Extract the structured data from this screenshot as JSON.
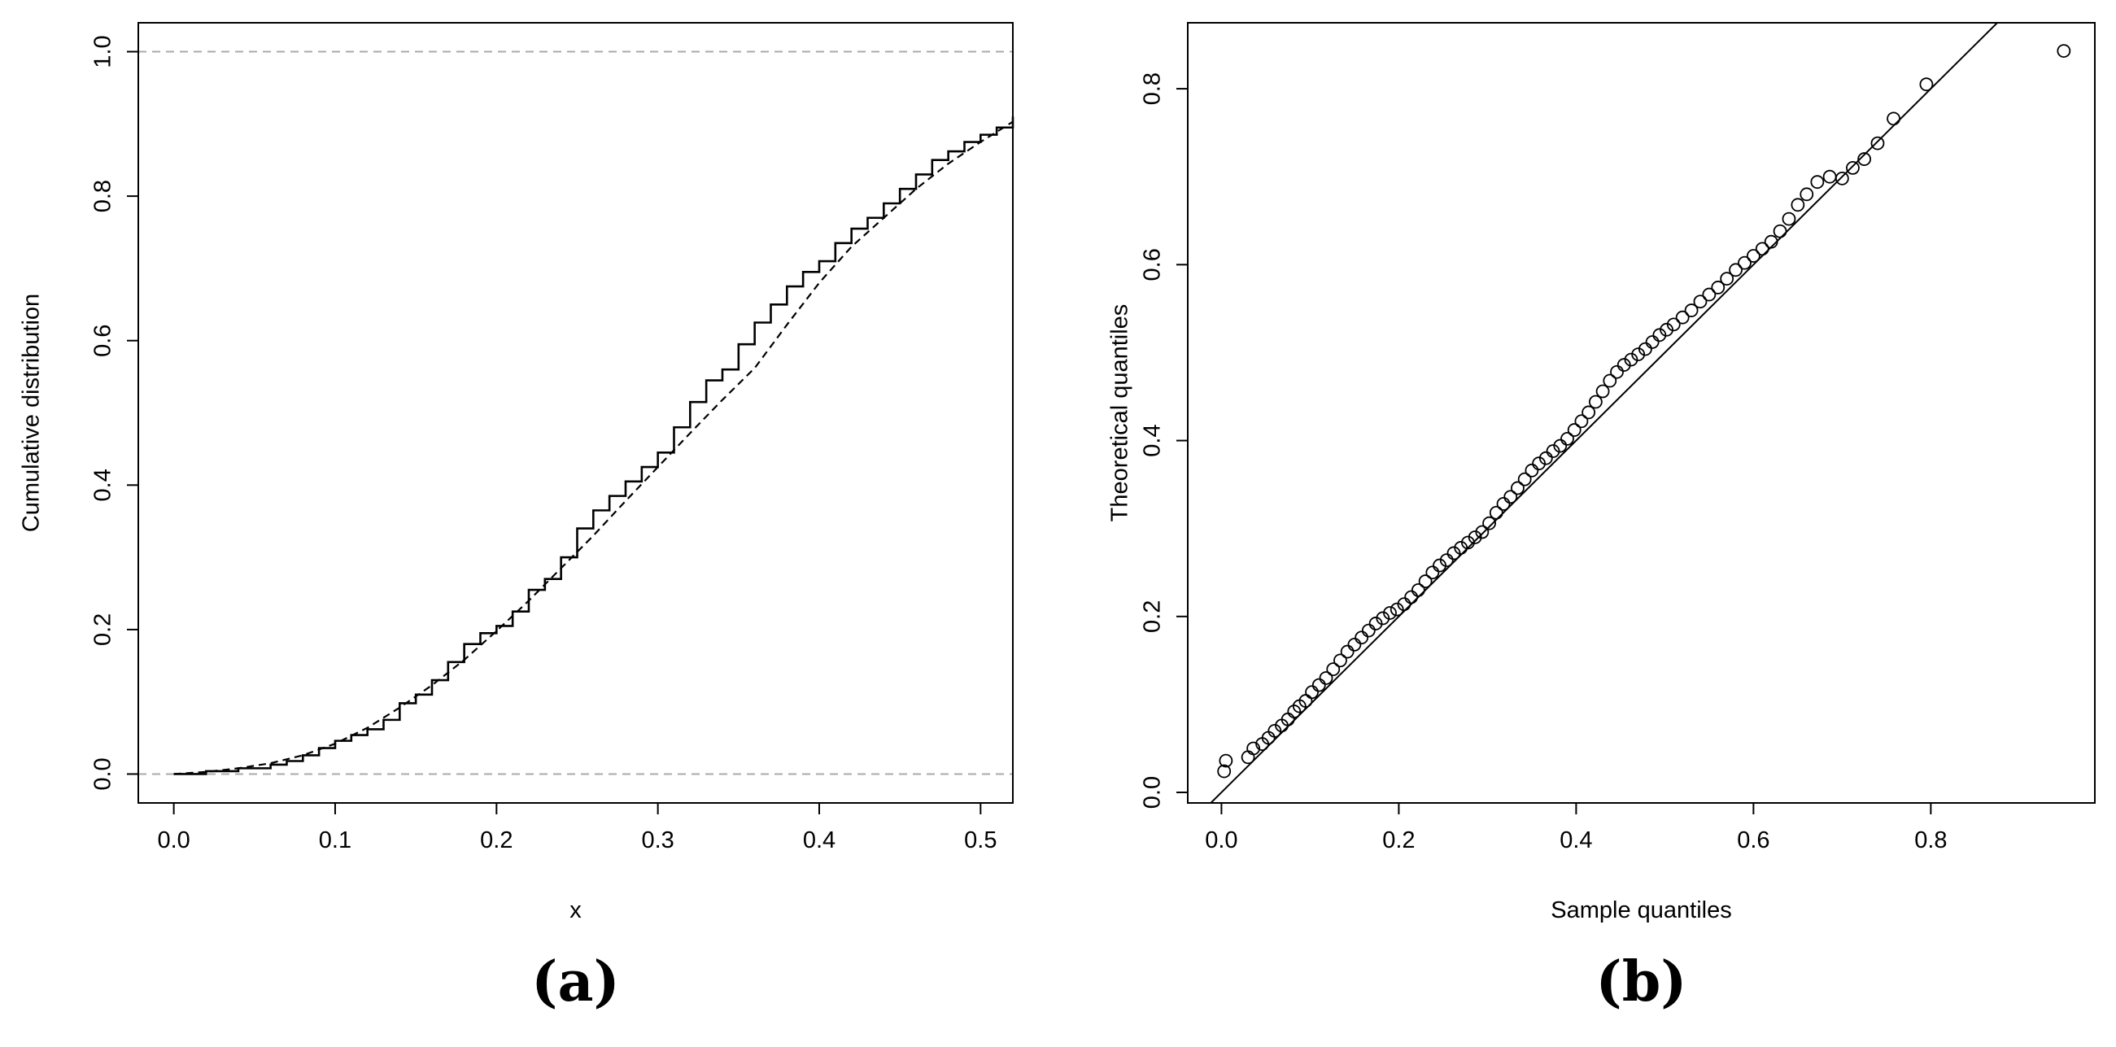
{
  "panels": {
    "a_label": "(a)",
    "b_label": "(b)"
  },
  "chart_data": [
    {
      "id": "a",
      "type": "line",
      "title": "",
      "xlabel": "x",
      "ylabel": "Cumulative distribution",
      "xlim": [
        -0.022,
        0.52
      ],
      "ylim": [
        -0.04,
        1.04
      ],
      "xticks": [
        0.0,
        0.1,
        0.2,
        0.3,
        0.4,
        0.5
      ],
      "xtick_labels": [
        "0.0",
        "0.1",
        "0.2",
        "0.3",
        "0.4",
        "0.5"
      ],
      "yticks": [
        0.0,
        0.2,
        0.4,
        0.6,
        0.8,
        1.0
      ],
      "ytick_labels": [
        "0.0",
        "0.2",
        "0.4",
        "0.6",
        "0.8",
        "1.0"
      ],
      "reference_lines_y": [
        0.0,
        1.0
      ],
      "grid": false,
      "series": [
        {
          "style": "solid-step",
          "x": [
            0.0,
            0.02,
            0.04,
            0.06,
            0.07,
            0.08,
            0.09,
            0.1,
            0.11,
            0.12,
            0.13,
            0.14,
            0.15,
            0.16,
            0.17,
            0.18,
            0.19,
            0.2,
            0.21,
            0.22,
            0.23,
            0.24,
            0.25,
            0.26,
            0.27,
            0.28,
            0.29,
            0.3,
            0.31,
            0.32,
            0.33,
            0.34,
            0.35,
            0.36,
            0.37,
            0.38,
            0.39,
            0.4,
            0.41,
            0.42,
            0.43,
            0.44,
            0.45,
            0.46,
            0.47,
            0.48,
            0.49,
            0.5,
            0.51,
            0.52
          ],
          "y": [
            0.0,
            0.004,
            0.008,
            0.013,
            0.018,
            0.026,
            0.036,
            0.046,
            0.054,
            0.062,
            0.075,
            0.098,
            0.11,
            0.13,
            0.155,
            0.18,
            0.195,
            0.205,
            0.225,
            0.255,
            0.27,
            0.3,
            0.34,
            0.365,
            0.385,
            0.405,
            0.425,
            0.445,
            0.48,
            0.515,
            0.545,
            0.56,
            0.595,
            0.625,
            0.65,
            0.675,
            0.695,
            0.71,
            0.735,
            0.755,
            0.77,
            0.79,
            0.81,
            0.83,
            0.85,
            0.862,
            0.875,
            0.885,
            0.895,
            0.91
          ]
        },
        {
          "style": "dashed-smooth",
          "x": [
            0.0,
            0.02,
            0.04,
            0.06,
            0.08,
            0.1,
            0.12,
            0.14,
            0.16,
            0.18,
            0.2,
            0.22,
            0.24,
            0.26,
            0.28,
            0.3,
            0.32,
            0.34,
            0.36,
            0.38,
            0.4,
            0.42,
            0.44,
            0.46,
            0.48,
            0.5,
            0.52
          ],
          "y": [
            0.0,
            0.003,
            0.008,
            0.015,
            0.026,
            0.042,
            0.064,
            0.092,
            0.123,
            0.158,
            0.198,
            0.24,
            0.285,
            0.33,
            0.378,
            0.425,
            0.472,
            0.518,
            0.562,
            0.622,
            0.68,
            0.73,
            0.77,
            0.81,
            0.845,
            0.875,
            0.903
          ]
        }
      ]
    },
    {
      "id": "b",
      "type": "scatter",
      "title": "",
      "xlabel": "Sample quantiles",
      "ylabel": "Theoretical quantiles",
      "xlim": [
        -0.038,
        0.985
      ],
      "ylim": [
        -0.012,
        0.875
      ],
      "xticks": [
        0.0,
        0.2,
        0.4,
        0.6,
        0.8
      ],
      "xtick_labels": [
        "0.0",
        "0.2",
        "0.4",
        "0.6",
        "0.8"
      ],
      "yticks": [
        0.0,
        0.2,
        0.4,
        0.6,
        0.8
      ],
      "ytick_labels": [
        "0.0",
        "0.2",
        "0.4",
        "0.6",
        "0.8"
      ],
      "grid": false,
      "reference_line": {
        "slope": 1.0,
        "intercept": 0.0
      },
      "points": {
        "x": [
          0.003,
          0.005,
          0.03,
          0.036,
          0.046,
          0.053,
          0.06,
          0.068,
          0.075,
          0.082,
          0.088,
          0.095,
          0.102,
          0.11,
          0.118,
          0.126,
          0.134,
          0.142,
          0.15,
          0.158,
          0.166,
          0.174,
          0.182,
          0.19,
          0.198,
          0.206,
          0.214,
          0.222,
          0.23,
          0.238,
          0.246,
          0.254,
          0.262,
          0.27,
          0.278,
          0.286,
          0.294,
          0.302,
          0.31,
          0.318,
          0.326,
          0.334,
          0.342,
          0.35,
          0.358,
          0.366,
          0.374,
          0.382,
          0.39,
          0.398,
          0.406,
          0.414,
          0.422,
          0.43,
          0.438,
          0.446,
          0.454,
          0.462,
          0.47,
          0.478,
          0.486,
          0.494,
          0.502,
          0.51,
          0.52,
          0.53,
          0.54,
          0.55,
          0.56,
          0.57,
          0.58,
          0.59,
          0.6,
          0.61,
          0.62,
          0.63,
          0.64,
          0.65,
          0.66,
          0.672,
          0.686,
          0.7,
          0.712,
          0.725,
          0.74,
          0.758,
          0.795,
          0.95
        ],
        "y": [
          0.024,
          0.036,
          0.04,
          0.05,
          0.055,
          0.062,
          0.07,
          0.076,
          0.083,
          0.092,
          0.098,
          0.104,
          0.114,
          0.122,
          0.13,
          0.14,
          0.15,
          0.16,
          0.168,
          0.176,
          0.184,
          0.192,
          0.198,
          0.204,
          0.208,
          0.214,
          0.222,
          0.23,
          0.24,
          0.25,
          0.258,
          0.264,
          0.272,
          0.278,
          0.284,
          0.29,
          0.296,
          0.306,
          0.318,
          0.328,
          0.336,
          0.346,
          0.356,
          0.366,
          0.374,
          0.38,
          0.388,
          0.394,
          0.402,
          0.412,
          0.422,
          0.432,
          0.444,
          0.456,
          0.468,
          0.478,
          0.486,
          0.492,
          0.498,
          0.504,
          0.512,
          0.52,
          0.526,
          0.532,
          0.54,
          0.548,
          0.558,
          0.566,
          0.574,
          0.584,
          0.594,
          0.602,
          0.61,
          0.618,
          0.626,
          0.638,
          0.652,
          0.668,
          0.68,
          0.694,
          0.7,
          0.698,
          0.71,
          0.72,
          0.738,
          0.766,
          0.805,
          0.843
        ]
      }
    }
  ]
}
